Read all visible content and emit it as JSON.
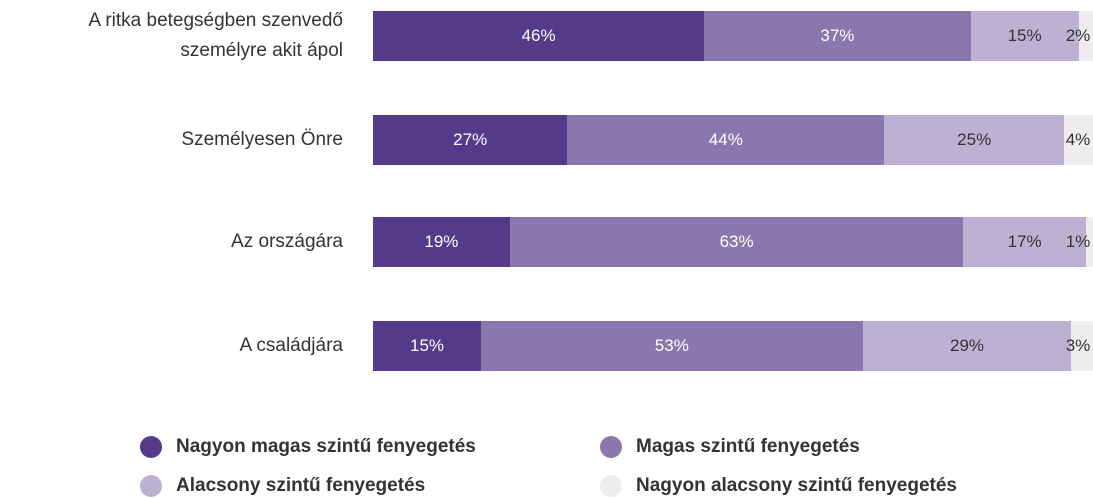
{
  "chart_data": {
    "type": "stacked-bar-horizontal",
    "categories": [
      "A ritka betegségben szenvedő személyre akit ápol",
      "Személyesen Önre",
      "Az országára",
      "A családjára"
    ],
    "series": [
      {
        "name": "Nagyon magas szintű fenyegetés",
        "color": "#553a8a",
        "values": [
          46,
          27,
          19,
          15
        ],
        "value_labels": [
          "46%",
          "27%",
          "19%",
          "15%"
        ]
      },
      {
        "name": "Magas szintű fenyegetés",
        "color": "#8a77ad",
        "values": [
          37,
          44,
          63,
          53
        ],
        "value_labels": [
          "37%",
          "44%",
          "63%",
          "53%"
        ]
      },
      {
        "name": "Alacsony szintű fenyegetés",
        "color": "#bcb1d2",
        "values": [
          15,
          25,
          17,
          29
        ],
        "value_labels": [
          "15%",
          "25%",
          "17%",
          "29%"
        ]
      },
      {
        "name": "Nagyon alacsony szintű fenyegetés",
        "color": "#eeeeee",
        "values": [
          2,
          4,
          1,
          3
        ],
        "value_labels": [
          "2%",
          "4%",
          "1%",
          "3%"
        ]
      }
    ],
    "xlim": [
      0,
      100
    ]
  }
}
